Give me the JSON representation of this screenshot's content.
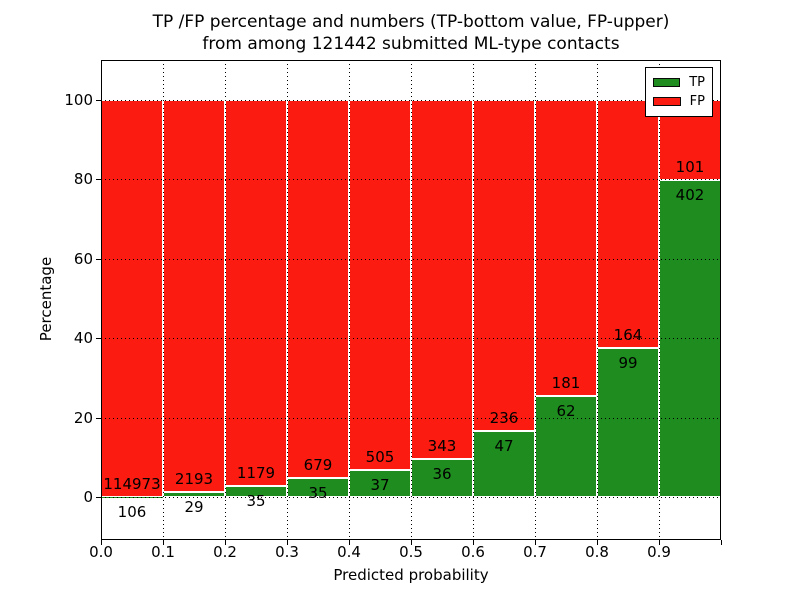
{
  "title": {
    "line1": "TP /FP percentage and numbers (TP-bottom value, FP-upper)",
    "line2": "from among 121442 submitted ML-type contacts"
  },
  "axes": {
    "xlabel": "Predicted probability",
    "ylabel": "Percentage",
    "ytick_labels": [
      "0",
      "20",
      "40",
      "60",
      "80",
      "100"
    ],
    "xtick_labels": [
      "0.0",
      "0.1",
      "0.2",
      "0.3",
      "0.4",
      "0.5",
      "0.6",
      "0.7",
      "0.8",
      "0.9"
    ]
  },
  "legend": {
    "items": [
      {
        "label": "TP",
        "color": "#1e8c1e"
      },
      {
        "label": "FP",
        "color": "#fb1b10"
      }
    ]
  },
  "colors": {
    "tp_green": "#1e8c1e",
    "fp_red": "#fb1b10",
    "bar_edge": "#ffffff",
    "grid": "#000000",
    "background": "#ffffff"
  },
  "chart_data": {
    "type": "bar",
    "stacked": true,
    "normalized": "each bin scaled to 100%, bar height = TP percentage of bin",
    "title": "TP /FP percentage and numbers (TP-bottom value, FP-upper) from among 121442 submitted ML-type contacts",
    "xlabel": "Predicted probability",
    "ylabel": "Percentage",
    "categories": [
      "0.0-0.1",
      "0.1-0.2",
      "0.2-0.3",
      "0.3-0.4",
      "0.4-0.5",
      "0.5-0.6",
      "0.6-0.7",
      "0.7-0.8",
      "0.8-0.9",
      "0.9-1.0"
    ],
    "bin_start": 0.0,
    "bin_width": 0.1,
    "series": [
      {
        "name": "TP",
        "color": "#1e8c1e",
        "counts": [
          106,
          29,
          35,
          35,
          37,
          36,
          47,
          62,
          99,
          402
        ]
      },
      {
        "name": "FP",
        "color": "#fb1b10",
        "counts": [
          114973,
          2193,
          1179,
          679,
          505,
          343,
          236,
          181,
          164,
          101
        ]
      }
    ],
    "total_contacts": 121442,
    "xlim": [
      0.0,
      1.0
    ],
    "ylim": [
      -10.8,
      110.1
    ],
    "xticks": [
      0.0,
      0.1,
      0.2,
      0.3,
      0.4,
      0.5,
      0.6,
      0.7,
      0.8,
      0.9
    ],
    "yticks": [
      0,
      20,
      40,
      60,
      80,
      100
    ],
    "grid": true,
    "grid_style": "dotted",
    "legend_position": "upper right"
  }
}
